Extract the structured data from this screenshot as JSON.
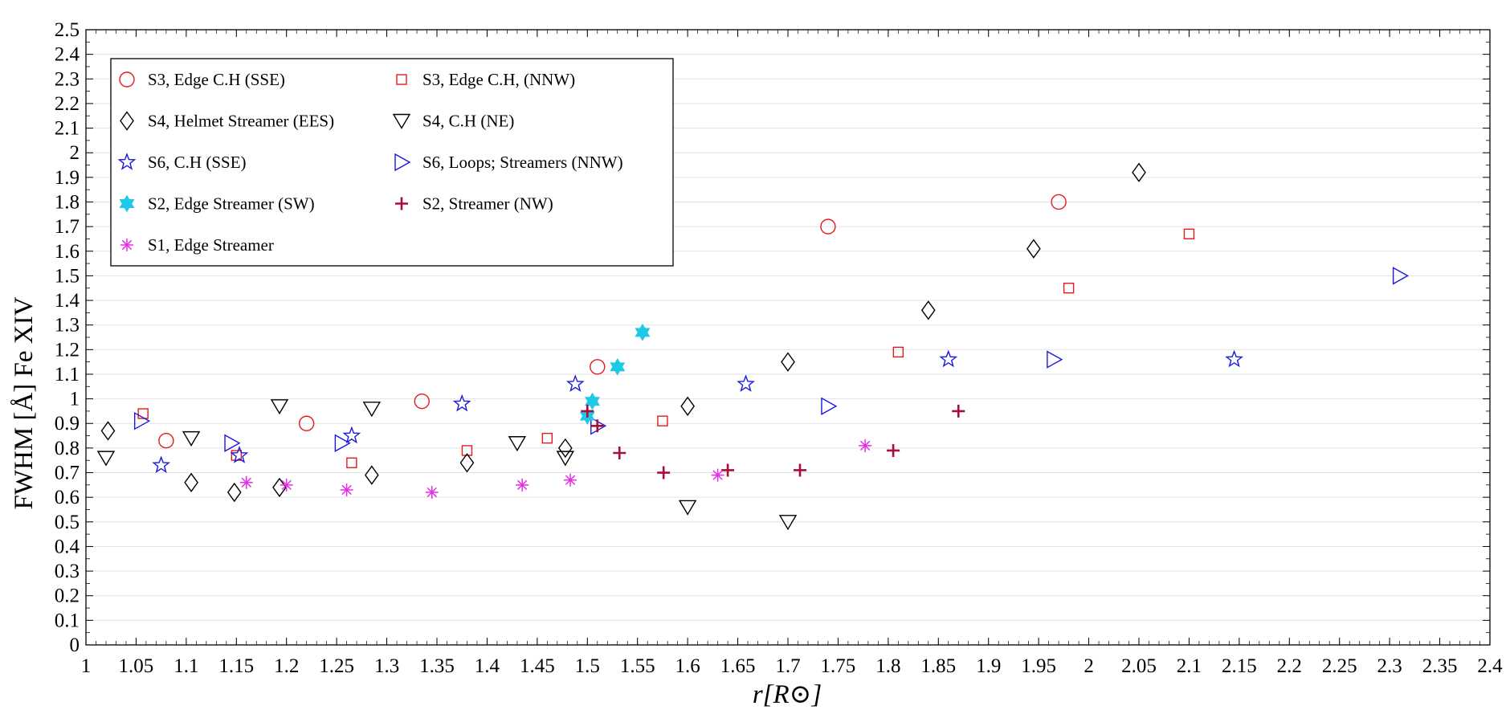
{
  "chart_data": {
    "type": "scatter",
    "title": "",
    "xlabel": "r[R⊙]",
    "ylabel": "FWHM [Å] Fe XIV",
    "xlim": [
      1,
      2.4
    ],
    "ylim": [
      0,
      2.5
    ],
    "xticks": [
      "1",
      "1.05",
      "1.1",
      "1.15",
      "1.2",
      "1.25",
      "1.3",
      "1.35",
      "1.4",
      "1.45",
      "1.5",
      "1.55",
      "1.6",
      "1.65",
      "1.7",
      "1.75",
      "1.8",
      "1.85",
      "1.9",
      "1.95",
      "2",
      "2.05",
      "2.1",
      "2.15",
      "2.2",
      "2.25",
      "2.3",
      "2.35",
      "2.4"
    ],
    "yticks": [
      "0",
      "0.1",
      "0.2",
      "0.3",
      "0.4",
      "0.5",
      "0.6",
      "0.7",
      "0.8",
      "0.9",
      "1",
      "1.1",
      "1.2",
      "1.3",
      "1.4",
      "1.5",
      "1.6",
      "1.7",
      "1.8",
      "1.9",
      "2",
      "2.1",
      "2.2",
      "2.3",
      "2.4",
      "2.5"
    ],
    "grid": "horizontal",
    "legend_position": "top-left",
    "series": [
      {
        "name": "S3, Edge C.H (SSE)",
        "marker": "circle",
        "color": "#e41a1c",
        "points": [
          [
            1.08,
            0.83
          ],
          [
            1.22,
            0.9
          ],
          [
            1.335,
            0.99
          ],
          [
            1.51,
            1.13
          ],
          [
            1.74,
            1.7
          ],
          [
            1.97,
            1.8
          ]
        ]
      },
      {
        "name": "S3, Edge C.H, (NNW)",
        "marker": "square",
        "color": "#e41a1c",
        "points": [
          [
            1.057,
            0.94
          ],
          [
            1.15,
            0.77
          ],
          [
            1.265,
            0.74
          ],
          [
            1.38,
            0.79
          ],
          [
            1.46,
            0.84
          ],
          [
            1.575,
            0.91
          ],
          [
            1.81,
            1.19
          ],
          [
            1.98,
            1.45
          ],
          [
            2.1,
            1.67
          ]
        ]
      },
      {
        "name": "S4, Helmet Streamer (EES)",
        "marker": "diamond",
        "color": "#000000",
        "points": [
          [
            1.022,
            0.87
          ],
          [
            1.105,
            0.66
          ],
          [
            1.148,
            0.62
          ],
          [
            1.193,
            0.64
          ],
          [
            1.285,
            0.69
          ],
          [
            1.38,
            0.74
          ],
          [
            1.478,
            0.8
          ],
          [
            1.6,
            0.97
          ],
          [
            1.7,
            1.15
          ],
          [
            1.84,
            1.36
          ],
          [
            1.945,
            1.61
          ],
          [
            2.05,
            1.92
          ]
        ]
      },
      {
        "name": "S4, C.H (NE)",
        "marker": "triangle-down",
        "color": "#000000",
        "points": [
          [
            1.02,
            0.76
          ],
          [
            1.105,
            0.84
          ],
          [
            1.193,
            0.97
          ],
          [
            1.285,
            0.96
          ],
          [
            1.43,
            0.82
          ],
          [
            1.478,
            0.76
          ],
          [
            1.6,
            0.56
          ],
          [
            1.7,
            0.5
          ]
        ]
      },
      {
        "name": "S6, C.H (SSE)",
        "marker": "star",
        "color": "#1a1adc",
        "points": [
          [
            1.075,
            0.73
          ],
          [
            1.153,
            0.77
          ],
          [
            1.265,
            0.85
          ],
          [
            1.375,
            0.98
          ],
          [
            1.488,
            1.06
          ],
          [
            1.658,
            1.06
          ],
          [
            1.86,
            1.16
          ],
          [
            2.145,
            1.16
          ]
        ]
      },
      {
        "name": "S6, Loops; Streamers (NNW)",
        "marker": "triangle-right",
        "color": "#1a1adc",
        "points": [
          [
            1.055,
            0.91
          ],
          [
            1.145,
            0.82
          ],
          [
            1.255,
            0.82
          ],
          [
            1.51,
            0.89
          ],
          [
            1.74,
            0.97
          ],
          [
            1.965,
            1.16
          ],
          [
            2.31,
            1.5
          ]
        ]
      },
      {
        "name": "S2, Edge Streamer (SW)",
        "marker": "hexagram",
        "color": "#1ec8e6",
        "points": [
          [
            1.5,
            0.93
          ],
          [
            1.505,
            0.99
          ],
          [
            1.53,
            1.13
          ],
          [
            1.555,
            1.27
          ]
        ]
      },
      {
        "name": "S2, Streamer (NW)",
        "marker": "plus",
        "color": "#a50f3a",
        "points": [
          [
            1.5,
            0.95
          ],
          [
            1.51,
            0.89
          ],
          [
            1.532,
            0.78
          ],
          [
            1.576,
            0.7
          ],
          [
            1.64,
            0.71
          ],
          [
            1.712,
            0.71
          ],
          [
            1.805,
            0.79
          ],
          [
            1.87,
            0.95
          ]
        ]
      },
      {
        "name": "S1, Edge Streamer",
        "marker": "asterisk",
        "color": "#e62ee6",
        "points": [
          [
            1.16,
            0.66
          ],
          [
            1.2,
            0.65
          ],
          [
            1.26,
            0.63
          ],
          [
            1.345,
            0.62
          ],
          [
            1.435,
            0.65
          ],
          [
            1.483,
            0.67
          ],
          [
            1.63,
            0.69
          ],
          [
            1.777,
            0.81
          ]
        ]
      }
    ]
  }
}
